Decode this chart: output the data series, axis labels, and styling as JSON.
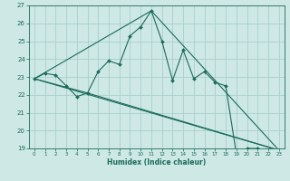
{
  "bg_color": "#cde8e5",
  "grid_color": "#aacfcc",
  "line_color": "#1a6b5a",
  "xlabel": "Humidex (Indice chaleur)",
  "xlim": [
    -0.5,
    23.5
  ],
  "ylim": [
    19,
    27
  ],
  "yticks": [
    19,
    20,
    21,
    22,
    23,
    24,
    25,
    26,
    27
  ],
  "xticks": [
    0,
    1,
    2,
    3,
    4,
    5,
    6,
    7,
    8,
    9,
    10,
    11,
    12,
    13,
    14,
    15,
    16,
    17,
    18,
    19,
    20,
    21,
    22,
    23
  ],
  "series1_x": [
    0,
    1,
    2,
    3,
    4,
    5,
    6,
    7,
    8,
    9,
    10,
    11,
    12,
    13,
    14,
    15,
    16,
    17,
    18,
    19,
    20,
    21,
    22,
    23
  ],
  "series1_y": [
    22.9,
    23.2,
    23.1,
    22.5,
    21.9,
    22.1,
    23.3,
    23.9,
    23.7,
    25.3,
    25.8,
    26.7,
    25.0,
    22.8,
    24.5,
    22.9,
    23.3,
    22.7,
    22.5,
    18.7,
    19.0,
    19.0,
    18.9,
    18.9
  ],
  "series2_x": [
    0,
    23
  ],
  "series2_y": [
    22.9,
    18.9
  ],
  "series3_x": [
    0,
    5,
    23
  ],
  "series3_y": [
    22.9,
    22.1,
    18.9
  ],
  "series4_x": [
    0,
    11,
    23
  ],
  "series4_y": [
    22.9,
    26.7,
    18.9
  ]
}
